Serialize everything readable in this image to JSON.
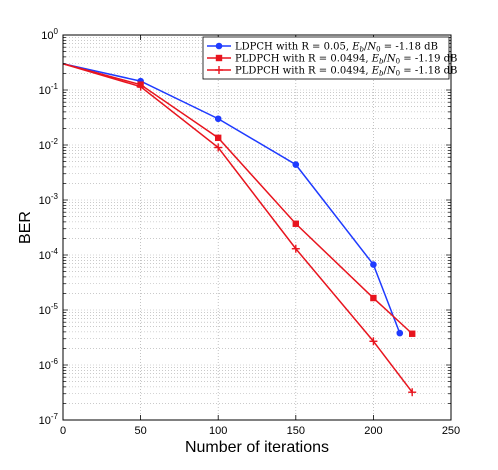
{
  "chart_data": {
    "type": "line",
    "xlabel": "Number of iterations",
    "ylabel": "BER",
    "xlim": [
      0,
      250
    ],
    "ylim": [
      1e-07,
      1
    ],
    "yscale": "log",
    "grid": true,
    "legend_position": "top-right",
    "x_ticks": [
      "0",
      "50",
      "100",
      "150",
      "200",
      "250"
    ],
    "y_ticks": [
      {
        "base": "10",
        "exp": "0",
        "value": 1
      },
      {
        "base": "10",
        "exp": "-1",
        "value": 0.1
      },
      {
        "base": "10",
        "exp": "-2",
        "value": 0.01
      },
      {
        "base": "10",
        "exp": "-3",
        "value": 0.001
      },
      {
        "base": "10",
        "exp": "-4",
        "value": 0.0001
      },
      {
        "base": "10",
        "exp": "-5",
        "value": 1e-05
      },
      {
        "base": "10",
        "exp": "-6",
        "value": 1e-06
      },
      {
        "base": "10",
        "exp": "-7",
        "value": 1e-07
      }
    ],
    "series": [
      {
        "name": "LDPCH with R = 0.05, E_b/N_0 = -1.18 dB",
        "legend": {
          "pre": "LDPCH with R = 0.05, ",
          "E": "E",
          "b": "b",
          "N": "N",
          "zero": "0",
          "post": " = -1.18 dB"
        },
        "color": "#1f3bff",
        "marker": "circle",
        "points": [
          [
            0,
            0.3
          ],
          [
            50,
            0.145
          ],
          [
            100,
            0.03
          ],
          [
            150,
            0.0044
          ],
          [
            200,
            6.7e-05
          ],
          [
            217,
            3.8e-06
          ]
        ]
      },
      {
        "name": "PLDPCH with R = 0.0494, E_b/N_0 = -1.19 dB",
        "legend": {
          "pre": "PLDPCH with R = 0.0494, ",
          "E": "E",
          "b": "b",
          "N": "N",
          "zero": "0",
          "post": " = -1.19 dB"
        },
        "color": "#e8141e",
        "marker": "square",
        "points": [
          [
            0,
            0.3
          ],
          [
            50,
            0.125
          ],
          [
            100,
            0.0135
          ],
          [
            150,
            0.00037
          ],
          [
            200,
            1.65e-05
          ],
          [
            225,
            3.7e-06
          ]
        ]
      },
      {
        "name": "PLDPCH with R = 0.0494, E_b/N_0 = -1.18 dB",
        "legend": {
          "pre": "PLDPCH with R = 0.0494, ",
          "E": "E",
          "b": "b",
          "N": "N",
          "zero": "0",
          "post": " = -1.18 dB"
        },
        "color": "#e8141e",
        "marker": "plus",
        "points": [
          [
            0,
            0.3
          ],
          [
            50,
            0.115
          ],
          [
            100,
            0.009
          ],
          [
            150,
            0.00013
          ],
          [
            200,
            2.7e-06
          ],
          [
            225,
            3.2e-07
          ]
        ]
      }
    ]
  }
}
